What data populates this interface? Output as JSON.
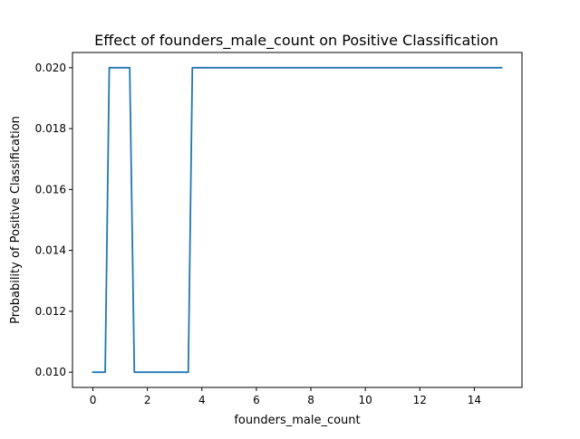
{
  "colors": {
    "line": "#1f77b4",
    "axes": "#000000",
    "background": "#ffffff"
  },
  "chart_data": {
    "type": "line",
    "title": "Effect of founders_male_count on Positive Classification",
    "xlabel": "founders_male_count",
    "ylabel": "Probability of Positive Classification",
    "xlim": [
      -0.75,
      15.75
    ],
    "ylim": [
      0.0095,
      0.0205
    ],
    "grid": false,
    "legend": "none",
    "xticks": [
      0,
      2,
      4,
      6,
      8,
      10,
      12,
      14
    ],
    "xtick_labels": [
      "0",
      "2",
      "4",
      "6",
      "8",
      "10",
      "12",
      "14"
    ],
    "yticks": [
      0.01,
      0.012,
      0.014,
      0.016,
      0.018,
      0.02
    ],
    "ytick_labels": [
      "0.010",
      "0.012",
      "0.014",
      "0.016",
      "0.018",
      "0.020"
    ],
    "series": [
      {
        "x": [
          0,
          0.45,
          0.6,
          1.35,
          1.52,
          3.5,
          3.65,
          15
        ],
        "y": [
          0.01,
          0.01,
          0.02,
          0.02,
          0.01,
          0.01,
          0.02,
          0.02
        ]
      }
    ]
  }
}
